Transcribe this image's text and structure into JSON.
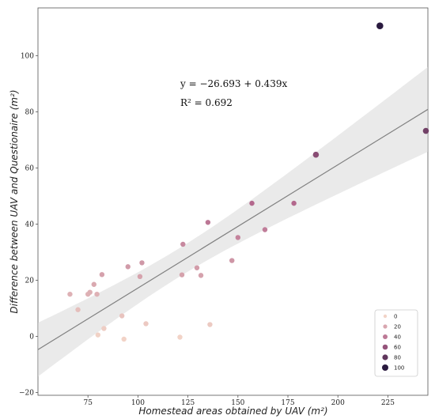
{
  "chart_data": {
    "type": "scatter",
    "title": "",
    "xlabel": "Homestead areas obtained by UAV (m²)",
    "ylabel": "Difference between UAV and Questionaire (m²)",
    "xlim": [
      50,
      245
    ],
    "ylim": [
      -21,
      117
    ],
    "xticks": [
      75,
      100,
      125,
      150,
      175,
      200,
      225
    ],
    "yticks": [
      -20,
      0,
      20,
      40,
      60,
      80,
      100
    ],
    "grid": false,
    "regression": {
      "intercept": -26.693,
      "slope": 0.439,
      "equation_label": "y = −26.693 + 0.439x",
      "r2_label": "R² = 0.692",
      "confidence_band": true
    },
    "color_scale": {
      "min": 0,
      "max": 100,
      "low_color": "#f2d3c7",
      "mid_color": "#b0628a",
      "high_color": "#2a1a3f"
    },
    "legend": {
      "placement": "bottom-right",
      "entries": [
        {
          "label": "0",
          "value": 0
        },
        {
          "label": "20",
          "value": 20
        },
        {
          "label": "40",
          "value": 40
        },
        {
          "label": "60",
          "value": 60
        },
        {
          "label": "80",
          "value": 80
        },
        {
          "label": "100",
          "value": 100
        }
      ]
    },
    "points": [
      {
        "x": 66,
        "y": 15.0
      },
      {
        "x": 70,
        "y": 9.5
      },
      {
        "x": 75,
        "y": 15.0
      },
      {
        "x": 76,
        "y": 15.7
      },
      {
        "x": 78,
        "y": 18.5
      },
      {
        "x": 79.5,
        "y": 15.0
      },
      {
        "x": 80,
        "y": 0.5
      },
      {
        "x": 82,
        "y": 22.0
      },
      {
        "x": 83,
        "y": 2.8
      },
      {
        "x": 92,
        "y": 7.3
      },
      {
        "x": 93,
        "y": -1.0
      },
      {
        "x": 95,
        "y": 24.8
      },
      {
        "x": 101,
        "y": 21.3
      },
      {
        "x": 102,
        "y": 26.2
      },
      {
        "x": 104,
        "y": 4.5
      },
      {
        "x": 121,
        "y": -0.3
      },
      {
        "x": 122,
        "y": 21.9
      },
      {
        "x": 122.5,
        "y": 32.8
      },
      {
        "x": 129.5,
        "y": 24.4
      },
      {
        "x": 131.5,
        "y": 21.7
      },
      {
        "x": 135,
        "y": 40.6
      },
      {
        "x": 136,
        "y": 4.2
      },
      {
        "x": 147,
        "y": 27.0
      },
      {
        "x": 150,
        "y": 35.2
      },
      {
        "x": 157,
        "y": 47.4
      },
      {
        "x": 163.5,
        "y": 38.0
      },
      {
        "x": 178,
        "y": 47.4
      },
      {
        "x": 189,
        "y": 64.7
      },
      {
        "x": 221,
        "y": 110.6
      },
      {
        "x": 244,
        "y": 73.2
      }
    ]
  }
}
